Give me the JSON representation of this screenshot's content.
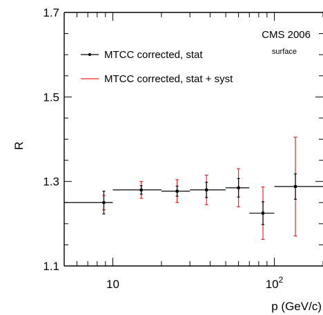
{
  "chart_data": {
    "type": "scatter",
    "title": "",
    "xlabel": "p (GeV/c)",
    "ylabel": "R",
    "xscale": "log",
    "xlim": [
      5,
      200
    ],
    "ylim": [
      1.1,
      1.7
    ],
    "x_tick_labels": [
      {
        "value": 10,
        "base": "10",
        "exp": ""
      },
      {
        "value": 100,
        "base": "10",
        "exp": "2"
      }
    ],
    "y_tick_labels": [
      "1.1",
      "1.3",
      "1.5",
      "1.7"
    ],
    "annotations": [
      "CMS 2006",
      "surface"
    ],
    "legend": {
      "position": "top-left",
      "entries": [
        {
          "label": "MTCC corrected, stat",
          "color": "#000000",
          "marker": "point"
        },
        {
          "label": "MTCC corrected, stat + syst",
          "color": "#e8262a",
          "marker": "line"
        }
      ]
    },
    "series": [
      {
        "name": "MTCC corrected, stat",
        "points": [
          {
            "x": 8.8,
            "x_lo": 5,
            "x_hi": 10,
            "y": 1.25,
            "y_err": 0.027
          },
          {
            "x": 15,
            "x_lo": 10,
            "x_hi": 20,
            "y": 1.28,
            "y_err": 0.01
          },
          {
            "x": 25,
            "x_lo": 20,
            "x_hi": 30,
            "y": 1.277,
            "y_err": 0.012
          },
          {
            "x": 38,
            "x_lo": 30,
            "x_hi": 50,
            "y": 1.28,
            "y_err": 0.018
          },
          {
            "x": 60,
            "x_lo": 50,
            "x_hi": 70,
            "y": 1.285,
            "y_err": 0.022
          },
          {
            "x": 85,
            "x_lo": 70,
            "x_hi": 100,
            "y": 1.225,
            "y_err": 0.027
          },
          {
            "x": 135,
            "x_lo": 100,
            "x_hi": 200,
            "y": 1.288,
            "y_err": 0.03
          }
        ]
      },
      {
        "name": "MTCC corrected, stat + syst",
        "points": [
          {
            "x": 8.8,
            "y": 1.25,
            "y_err": 0.017
          },
          {
            "x": 15,
            "y": 1.28,
            "y_err": 0.02
          },
          {
            "x": 25,
            "y": 1.277,
            "y_err": 0.027
          },
          {
            "x": 38,
            "y": 1.28,
            "y_err": 0.035
          },
          {
            "x": 60,
            "y": 1.285,
            "y_err": 0.045
          },
          {
            "x": 85,
            "y": 1.225,
            "y_err": 0.062
          },
          {
            "x": 135,
            "y": 1.288,
            "y_err": 0.117
          }
        ]
      }
    ]
  }
}
